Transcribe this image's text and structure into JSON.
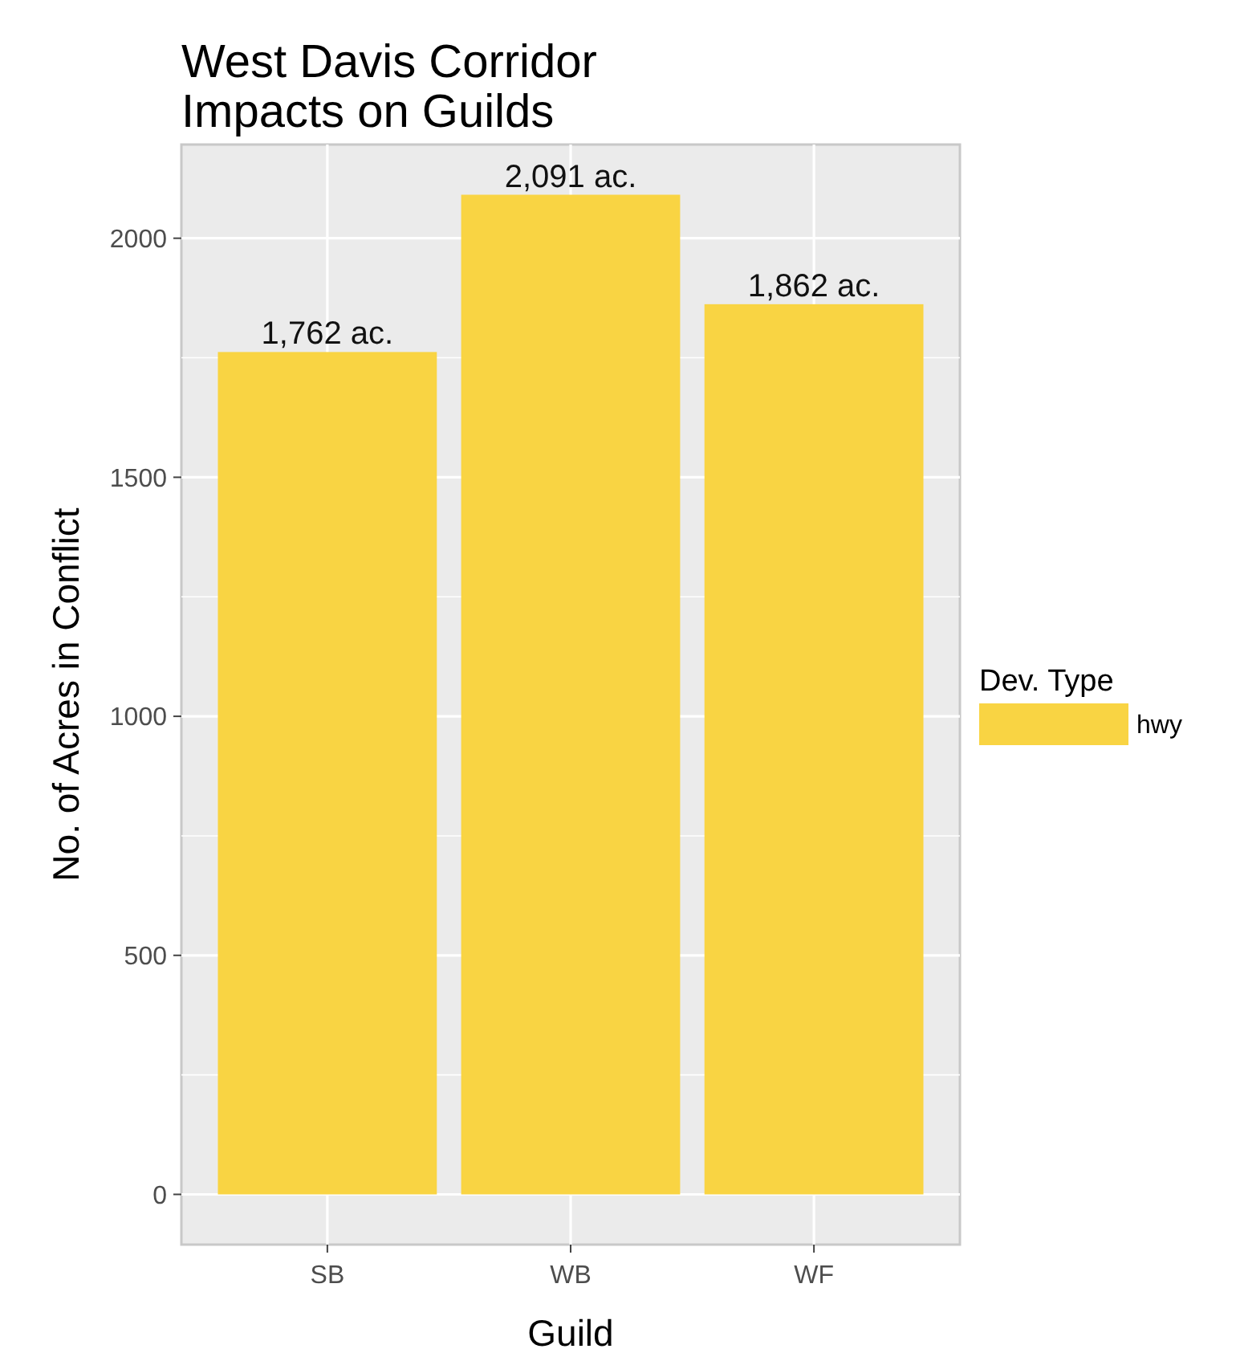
{
  "chart_data": {
    "type": "bar",
    "title": "West Davis Corridor\nImpacts on Guilds",
    "xlabel": "Guild",
    "ylabel": "No. of Acres in Conflict",
    "legend_title": "Dev. Type",
    "categories": [
      "SB",
      "WB",
      "WF"
    ],
    "series": [
      {
        "name": "hwy",
        "color": "#f9d443",
        "values": [
          1762,
          2091,
          1862
        ],
        "value_labels": [
          "1,762 ac.",
          "2,091 ac.",
          "1,862 ac."
        ]
      }
    ],
    "ylim": [
      -105,
      2196
    ],
    "yticks": [
      0,
      500,
      1000,
      1500,
      2000
    ],
    "grid": true,
    "legend": "right"
  }
}
